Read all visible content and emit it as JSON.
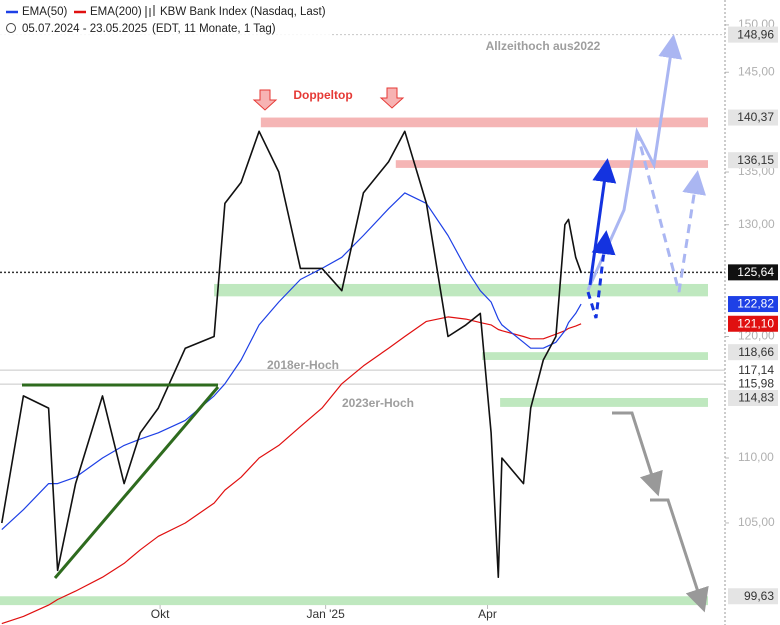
{
  "chart_data": {
    "type": "line",
    "log_scale": true,
    "subtitle": [
      "05.07.2024 - 23.05.2025",
      "(EDT, 11 Monate, 1 Tag)"
    ],
    "annotations": [
      "Allzeithoch aus2022",
      "Doppeltop",
      "2018er-Hoch",
      "2023er-Hoch"
    ],
    "x": [
      "2024-07-05",
      "2024-07-17",
      "2024-07-31",
      "2024-08-05",
      "2024-08-15",
      "2024-08-30",
      "2024-09-11",
      "2024-09-20",
      "2024-09-30",
      "2024-10-15",
      "2024-10-31",
      "2024-11-06",
      "2024-11-15",
      "2024-11-25",
      "2024-12-06",
      "2024-12-18",
      "2024-12-30",
      "2025-01-10",
      "2025-01-22",
      "2025-02-05",
      "2025-02-14",
      "2025-02-26",
      "2025-03-10",
      "2025-03-20",
      "2025-03-28",
      "2025-04-03",
      "2025-04-07",
      "2025-04-09",
      "2025-04-21",
      "2025-04-25",
      "2025-05-02",
      "2025-05-09",
      "2025-05-14",
      "2025-05-16",
      "2025-05-20",
      "2025-05-23"
    ],
    "series": [
      {
        "name": "KBW Bank Index (Nasdaq, Last)",
        "color": "#111111",
        "values": [
          105,
          115,
          114,
          101.5,
          108,
          115,
          108,
          112,
          114,
          119,
          120,
          132,
          134,
          139,
          135,
          126,
          126,
          124,
          133,
          136,
          139,
          132,
          120,
          121,
          122,
          112,
          101,
          110,
          108,
          114,
          118,
          120,
          130,
          130.5,
          127,
          125.64
        ]
      },
      {
        "name": "EMA(50)",
        "color": "#1e40e6",
        "values": [
          104.5,
          106,
          108,
          108,
          108.5,
          110,
          111,
          111.5,
          112,
          113,
          115,
          116,
          118,
          121,
          123,
          125,
          126,
          127,
          129,
          131.5,
          133,
          132,
          129,
          126,
          124,
          123,
          121.5,
          121,
          119.5,
          119,
          119,
          119.5,
          120.5,
          121.2,
          122,
          122.82
        ]
      },
      {
        "name": "EMA(200)",
        "color": "#e01010",
        "values": [
          97.7,
          98.2,
          99,
          99.4,
          100,
          101,
          102,
          103,
          104,
          105,
          106.5,
          107.5,
          108.5,
          110,
          111,
          112.5,
          114,
          116,
          117.5,
          119,
          120,
          121.3,
          121.7,
          121.5,
          121.2,
          121,
          120.6,
          120.5,
          120,
          119.8,
          119.8,
          120.2,
          120.5,
          120.7,
          120.9,
          121.1
        ]
      }
    ],
    "xlim": [
      "2024-07-04",
      "2025-08-11"
    ],
    "xticks": [
      {
        "value": "2024-10-01",
        "label": "Okt"
      },
      {
        "value": "2025-01-01",
        "label": "Jan '25"
      },
      {
        "value": "2025-04-01",
        "label": "Apr"
      }
    ],
    "ylim": [
      97.6,
      152.7
    ],
    "yticks": [
      {
        "value": 105,
        "label": "105,00"
      },
      {
        "value": 110,
        "label": "110,00"
      },
      {
        "value": 120,
        "label": "120,00"
      },
      {
        "value": 130,
        "label": "130,00"
      },
      {
        "value": 135,
        "label": "135,00"
      },
      {
        "value": 145,
        "label": "145,00"
      },
      {
        "value": 150,
        "label": "150,00"
      }
    ],
    "zones": [
      {
        "from": 139.4,
        "to": 140.37,
        "start": "2024-11-26",
        "color": "#f5b5b5"
      },
      {
        "from": 135.4,
        "to": 136.15,
        "start": "2025-02-09",
        "color": "#f5b5b5"
      },
      {
        "from": 123.5,
        "to": 124.6,
        "start": "2024-10-31",
        "color": "#bfe8bf"
      },
      {
        "from": 118.0,
        "to": 118.66,
        "start": "2025-03-29",
        "color": "#bfe8bf"
      },
      {
        "from": 114.1,
        "to": 114.83,
        "start": "2025-04-08",
        "color": "#bfe8bf"
      },
      {
        "from": 99.0,
        "to": 99.63,
        "start": "2024-07-04",
        "color": "#bfe8bf"
      }
    ],
    "price_levels": [
      {
        "value": 148.96,
        "label": "148,96",
        "bg": "#e4e4e4",
        "fg": "#333333",
        "guide": "dotted"
      },
      {
        "value": 140.37,
        "label": "140,37",
        "bg": "#e4e4e4",
        "fg": "#333333"
      },
      {
        "value": 136.15,
        "label": "136,15",
        "bg": "#e4e4e4",
        "fg": "#333333"
      },
      {
        "value": 125.64,
        "label": "125,64",
        "bg": "#111111",
        "fg": "#ffffff",
        "guide": "dotted"
      },
      {
        "value": 122.82,
        "label": "122,82",
        "bg": "#1e40e6",
        "fg": "#ffffff"
      },
      {
        "value": 121.1,
        "label": "121,10",
        "bg": "#e01010",
        "fg": "#ffffff"
      },
      {
        "value": 118.66,
        "label": "118,66",
        "bg": "#e4e4e4",
        "fg": "#333333"
      },
      {
        "value": 117.14,
        "label": "117,14",
        "bg": "#ffffff",
        "fg": "#333333",
        "guide": "solid"
      },
      {
        "value": 115.98,
        "label": "115,98",
        "bg": "#ffffff",
        "fg": "#333333",
        "guide": "solid"
      },
      {
        "value": 114.83,
        "label": "114,83",
        "bg": "#e4e4e4",
        "fg": "#333333"
      },
      {
        "value": 99.63,
        "label": "99,63",
        "bg": "#e4e4e4",
        "fg": "#333333"
      }
    ]
  }
}
